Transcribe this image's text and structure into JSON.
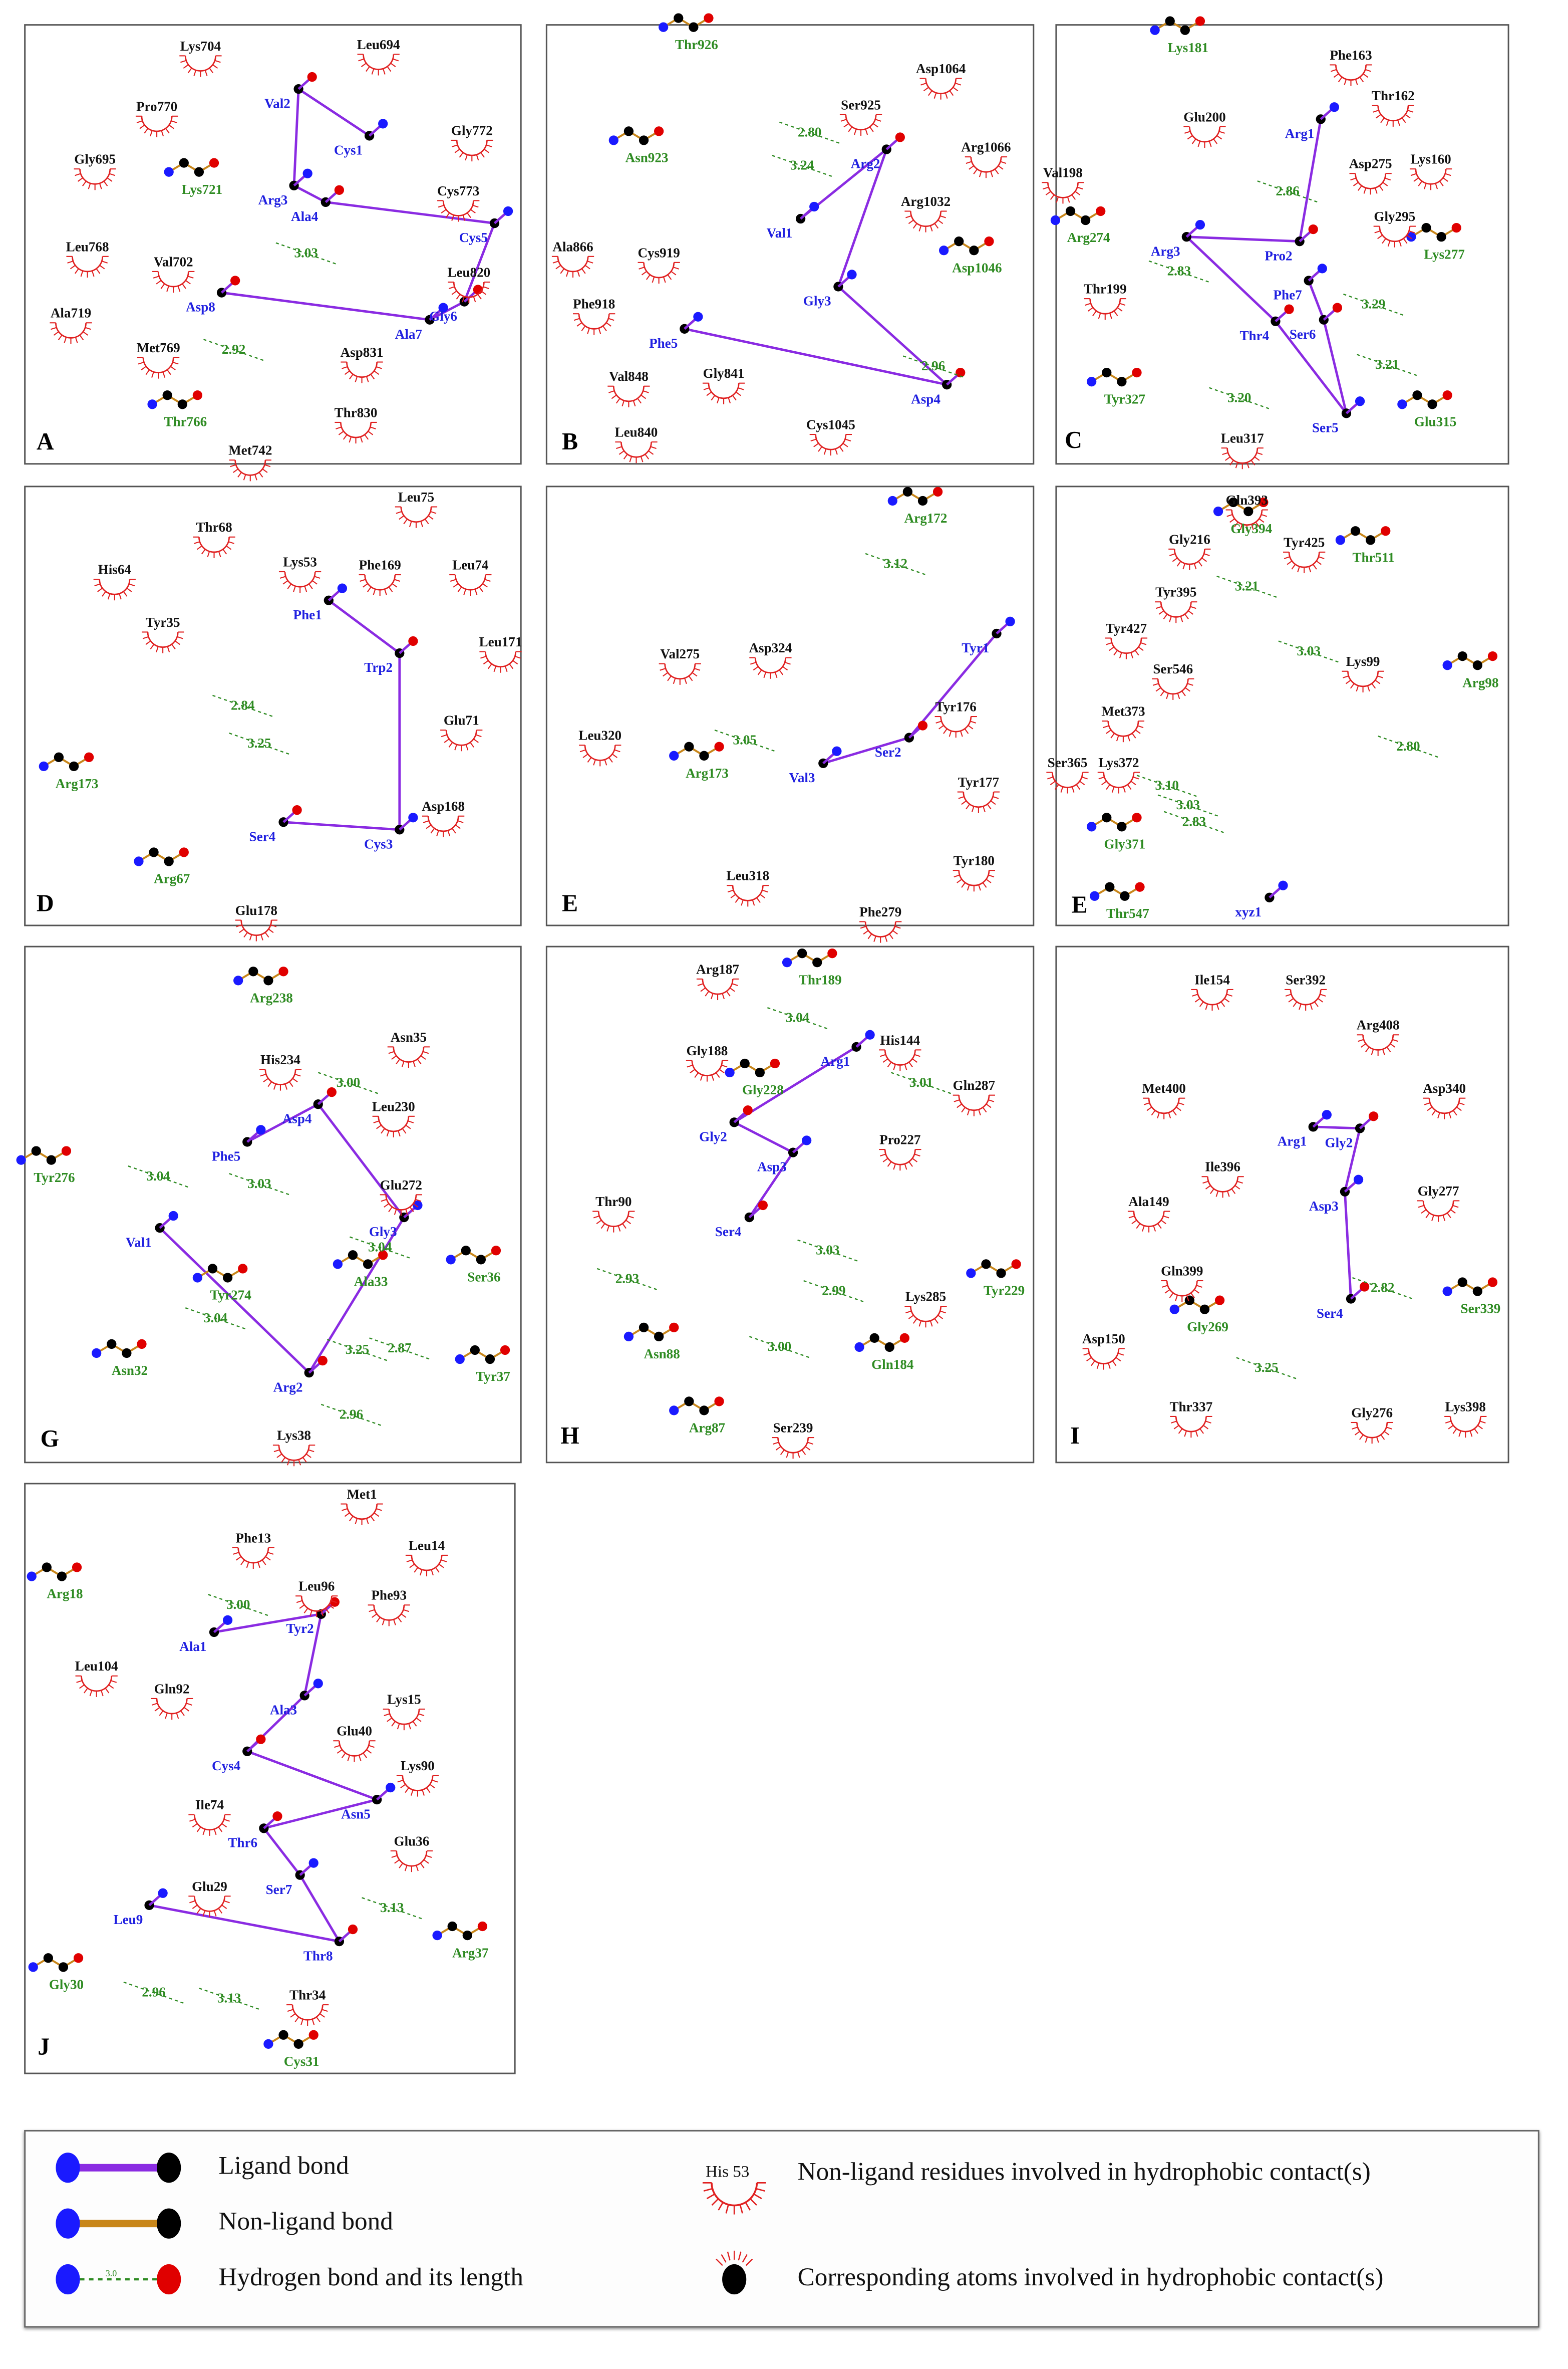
{
  "colors": {
    "ligand_bond": "#8a2be2",
    "non_ligand_bond": "#c8861a",
    "hydrogen_bond": "#2e8b22",
    "hydrophobic_contact": "#e02020",
    "ligand_residue_text": "#2020e0",
    "nitrogen_atom": "#1a1aff",
    "oxygen_atom": "#e00000",
    "carbon_atom": "#000000",
    "sulfur_atom": "#f0e000"
  },
  "panels": [
    {
      "letter": "A",
      "ligand": [
        "Cys1",
        "Val2",
        "Arg3",
        "Ala4",
        "Cys5",
        "Gly6",
        "Ala7",
        "Asp8"
      ],
      "hbond_residues": [
        "Lys721",
        "Thr766"
      ],
      "hydrophobic": [
        "Lys704",
        "Leu694",
        "Pro770",
        "Gly772",
        "Gly695",
        "Cys773",
        "Leu768",
        "Val702",
        "Leu820",
        "Ala719",
        "Met769",
        "Asp831",
        "Thr830",
        "Met742"
      ],
      "distances": [
        "3.03",
        "2.92"
      ]
    },
    {
      "letter": "B",
      "ligand": [
        "Val1",
        "Arg2",
        "Gly3",
        "Asp4",
        "Phe5"
      ],
      "hbond_residues": [
        "Thr926",
        "Asn923",
        "Asp1046"
      ],
      "hydrophobic": [
        "Asp1064",
        "Ser925",
        "Arg1066",
        "Arg1032",
        "Ala866",
        "Cys919",
        "Phe918",
        "Val848",
        "Gly841",
        "Leu840",
        "Cys1045"
      ],
      "distances": [
        "2.80",
        "3.24",
        "2.96"
      ]
    },
    {
      "letter": "C",
      "ligand": [
        "Arg1",
        "Pro2",
        "Arg3",
        "Thr4",
        "Ser5",
        "Ser6",
        "Phe7"
      ],
      "hbond_residues": [
        "Lys181",
        "Arg274",
        "Lys277",
        "Tyr327",
        "Glu315"
      ],
      "hydrophobic": [
        "Phe163",
        "Thr162",
        "Glu200",
        "Val198",
        "Asp275",
        "Lys160",
        "Gly295",
        "Thr199",
        "Leu317"
      ],
      "distances": [
        "2.86",
        "2.83",
        "3.29",
        "3.21",
        "3.20"
      ]
    },
    {
      "letter": "D",
      "ligand": [
        "Phe1",
        "Trp2",
        "Cys3",
        "Ser4"
      ],
      "hbond_residues": [
        "Arg173",
        "Arg67"
      ],
      "hydrophobic": [
        "Leu75",
        "Thr68",
        "His64",
        "Lys53",
        "Phe169",
        "Leu74",
        "Tyr35",
        "Leu171",
        "Glu71",
        "Asp168",
        "Glu178"
      ],
      "distances": [
        "2.84",
        "3.25"
      ]
    },
    {
      "letter": "E",
      "ligand": [
        "Tyr1",
        "Ser2",
        "Val3"
      ],
      "hbond_residues": [
        "Arg172",
        "Arg173"
      ],
      "hydrophobic": [
        "Val275",
        "Asp324",
        "Tyr176",
        "Leu320",
        "Tyr177",
        "Tyr180",
        "Leu318",
        "Phe279"
      ],
      "distances": [
        "3.12",
        "3.05"
      ]
    },
    {
      "letter": "E",
      "ligand": [
        "xyz1"
      ],
      "hbond_residues": [
        "Gly394",
        "Thr511",
        "Arg98",
        "Gly371",
        "Thr547"
      ],
      "hydrophobic": [
        "Gln393",
        "Gly216",
        "Tyr425",
        "Tyr395",
        "Tyr427",
        "Lys99",
        "Ser546",
        "Met373",
        "Ser365",
        "Lys372"
      ],
      "distances": [
        "3.21",
        "3.03",
        "2.80",
        "3.10",
        "3.03",
        "2.83"
      ]
    },
    {
      "letter": "G",
      "ligand": [
        "Val1",
        "Arg2",
        "Gly3",
        "Asp4",
        "Phe5"
      ],
      "hbond_residues": [
        "Arg238",
        "Tyr276",
        "Ala33",
        "Ser36",
        "Tyr274",
        "Asn32",
        "Tyr37"
      ],
      "hydrophobic": [
        "Asn35",
        "His234",
        "Leu230",
        "Glu272",
        "Lys38"
      ],
      "distances": [
        "3.00",
        "3.04",
        "3.03",
        "3.04",
        "3.04",
        "3.25",
        "2.87",
        "2.96"
      ]
    },
    {
      "letter": "H",
      "ligand": [
        "Arg1",
        "Gly2",
        "Asp3",
        "Ser4"
      ],
      "hbond_residues": [
        "Thr189",
        "Gly228",
        "Tyr229",
        "Asn88",
        "Gln184",
        "Arg87"
      ],
      "hydrophobic": [
        "Arg187",
        "His144",
        "Gly188",
        "Gln287",
        "Pro227",
        "Thr90",
        "Lys285",
        "Ser239"
      ],
      "distances": [
        "3.04",
        "3.01",
        "3.03",
        "2.93",
        "2.99",
        "3.00"
      ]
    },
    {
      "letter": "I",
      "ligand": [
        "Arg1",
        "Gly2",
        "Asp3",
        "Ser4"
      ],
      "hbond_residues": [
        "Ser339",
        "Gly269"
      ],
      "hydrophobic": [
        "Ile154",
        "Ser392",
        "Arg408",
        "Met400",
        "Asp340",
        "Ile396",
        "Ala149",
        "Gly277",
        "Gln399",
        "Asp150",
        "Thr337",
        "Gly276",
        "Lys398"
      ],
      "distances": [
        "2.82",
        "3.25"
      ]
    },
    {
      "letter": "J",
      "ligand": [
        "Ala1",
        "Tyr2",
        "Ala3",
        "Cys4",
        "Asn5",
        "Thr6",
        "Ser7",
        "Thr8",
        "Leu9"
      ],
      "hbond_residues": [
        "Arg18",
        "Arg37",
        "Gly30",
        "Cys31"
      ],
      "hydrophobic": [
        "Met1",
        "Phe13",
        "Leu14",
        "Leu96",
        "Phe93",
        "Leu104",
        "Gln92",
        "Lys15",
        "Glu40",
        "Lys90",
        "Ile74",
        "Glu36",
        "Glu29",
        "Thr34"
      ],
      "distances": [
        "3.00",
        "3.13",
        "2.96",
        "3.13"
      ]
    }
  ],
  "legend": {
    "ligand_bond": "Ligand bond",
    "non_ligand_bond": "Non-ligand bond",
    "hydrogen_bond": "Hydrogen bond and its length",
    "hydrogen_bond_sample": "3.0",
    "example_residue": "His 53",
    "hydrophobic_residues": "Non-ligand residues involved in hydrophobic contact(s)",
    "hydrophobic_atoms": "Corresponding atoms involved in hydrophobic contact(s)"
  }
}
